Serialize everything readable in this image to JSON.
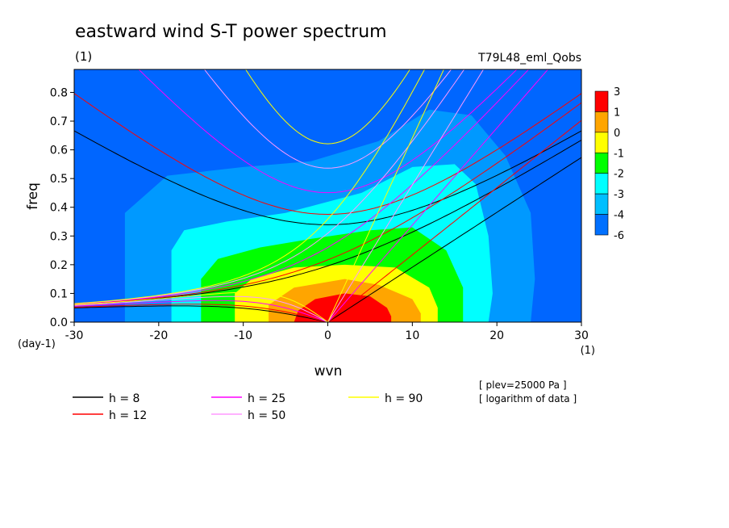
{
  "chart_data": {
    "type": "heatmap",
    "title": "eastward wind S-T power spectrum",
    "subtitle_left": "(1)",
    "subtitle_right": "T79L48_eml_Qobs",
    "xlabel": "wvn",
    "ylabel": "freq",
    "x_unit": "(1)",
    "y_unit": "(day-1)",
    "xlim": [
      -30,
      30
    ],
    "ylim": [
      0,
      0.88
    ],
    "x_ticks": [
      -30,
      -20,
      -10,
      0,
      10,
      20,
      30
    ],
    "y_ticks": [
      0.0,
      0.1,
      0.2,
      0.3,
      0.4,
      0.5,
      0.6,
      0.7,
      0.8
    ],
    "x_tick_labels": [
      "-30",
      "-20",
      "-10",
      "0",
      "10",
      "20",
      "30"
    ],
    "y_tick_labels": [
      "0.0",
      "0.1",
      "0.2",
      "0.3",
      "0.4",
      "0.5",
      "0.6",
      "0.7",
      "0.8"
    ],
    "colorbar": {
      "labels": [
        "3",
        "1",
        "0",
        "-1",
        "-2",
        "-3",
        "-4",
        "-6"
      ],
      "colors": [
        "#ff0000",
        "#ffa500",
        "#ffff00",
        "#00ff00",
        "#00ffff",
        "#00bfff",
        "#0070ff"
      ]
    },
    "shading_levels": [
      {
        "level": "-6",
        "color": "#0066ff"
      },
      {
        "level": "-4",
        "color": "#0099ff"
      },
      {
        "level": "-3",
        "color": "#00ffff"
      },
      {
        "level": "-2",
        "color": "#00ff00"
      },
      {
        "level": "-1",
        "color": "#ffff00"
      },
      {
        "level": "0",
        "color": "#ffa500"
      },
      {
        "level": "1",
        "color": "#ff0000"
      }
    ],
    "dispersion_curves": [
      {
        "name": "h =  8",
        "h": 8,
        "color": "#000000"
      },
      {
        "name": "h = 12",
        "h": 12,
        "color": "#ff0000"
      },
      {
        "name": "h = 25",
        "h": 25,
        "color": "#ff00ff"
      },
      {
        "name": "h = 50",
        "h": 50,
        "color": "#ff99ff"
      },
      {
        "name": "h = 90",
        "h": 90,
        "color": "#ffff00"
      }
    ],
    "annotations": [
      "[ plev=25000 Pa ]",
      "[ logarithm of data ]"
    ]
  }
}
